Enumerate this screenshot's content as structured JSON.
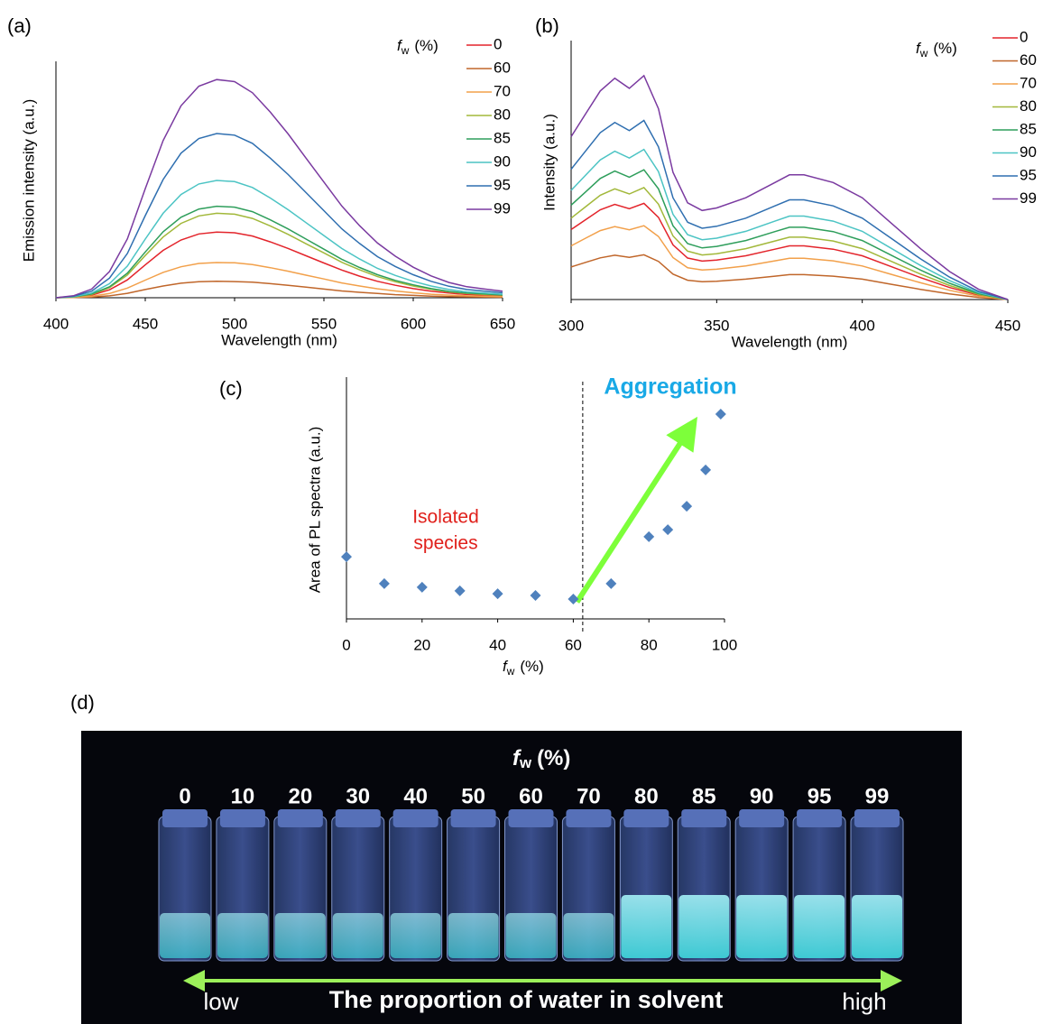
{
  "chart_data": [
    {
      "type": "line",
      "label": "(a)",
      "xlabel": "Wavelength (nm)",
      "ylabel": "Emission intensity  (a.u.)",
      "legend_title": [
        "f",
        "w",
        "(%)"
      ],
      "x": [
        400,
        410,
        420,
        430,
        440,
        450,
        460,
        470,
        480,
        490,
        500,
        510,
        520,
        530,
        540,
        550,
        560,
        570,
        580,
        590,
        600,
        610,
        620,
        630,
        640,
        650
      ],
      "xlim": [
        400,
        650
      ],
      "xticks": [
        400,
        450,
        500,
        550,
        600,
        650
      ],
      "ylim": [
        0,
        100
      ],
      "grid": false,
      "series": [
        {
          "name": "0",
          "color": "#e3242b",
          "values": [
            0,
            0.3,
            1.1,
            3.4,
            7.6,
            14,
            20.2,
            24.6,
            27.2,
            28,
            27.7,
            26.3,
            23.8,
            21,
            17.9,
            14.8,
            11.8,
            9.2,
            7,
            5.3,
            3.9,
            2.8,
            2,
            1.4,
            1.1,
            0.8
          ]
        },
        {
          "name": "60",
          "color": "#c0662a",
          "values": [
            0,
            0.1,
            0.3,
            0.8,
            1.9,
            3.5,
            5,
            6.2,
            6.8,
            7,
            6.9,
            6.6,
            6,
            5.3,
            4.5,
            3.7,
            2.9,
            2.3,
            1.8,
            1.3,
            1,
            0.7,
            0.5,
            0.4,
            0.3,
            0.2
          ]
        },
        {
          "name": "70",
          "color": "#f2a04a",
          "values": [
            0,
            0.2,
            0.6,
            1.8,
            4.1,
            7.5,
            10.8,
            13.2,
            14.6,
            15,
            14.9,
            14.1,
            12.8,
            11.3,
            9.6,
            8,
            6.3,
            5,
            3.8,
            2.9,
            2.1,
            1.5,
            1.1,
            0.8,
            0.6,
            0.5
          ]
        },
        {
          "name": "80",
          "color": "#a2b83a",
          "values": [
            0,
            0.4,
            1.4,
            4.3,
            9.7,
            18,
            25.9,
            31.7,
            34.9,
            36,
            35.6,
            33.8,
            30.6,
            27,
            23,
            19.1,
            15.1,
            11.9,
            9,
            6.8,
            5,
            3.6,
            2.5,
            1.8,
            1.4,
            1.1
          ]
        },
        {
          "name": "85",
          "color": "#2e9e5b",
          "values": [
            0,
            0.4,
            1.6,
            4.7,
            10.5,
            19.5,
            28.1,
            34.3,
            37.8,
            39,
            38.6,
            36.7,
            33.2,
            29.3,
            25,
            20.7,
            16.4,
            12.9,
            9.8,
            7.4,
            5.5,
            3.9,
            2.7,
            2,
            1.6,
            1.2
          ]
        },
        {
          "name": "90",
          "color": "#4cc4c4",
          "values": [
            0,
            0.5,
            2,
            6,
            13.5,
            25,
            36,
            44,
            48.5,
            50,
            49.5,
            47,
            42.5,
            37.5,
            32,
            26.5,
            21,
            16.5,
            12.5,
            9.5,
            7,
            5,
            3.5,
            2.5,
            2,
            1.5
          ]
        },
        {
          "name": "95",
          "color": "#2f6fb0",
          "values": [
            0,
            0.7,
            2.8,
            8.4,
            18.9,
            35,
            50.4,
            61.6,
            67.9,
            70,
            69.3,
            65.8,
            59.5,
            52.5,
            44.8,
            37.1,
            29.4,
            23.1,
            17.5,
            13.3,
            9.8,
            7,
            4.9,
            3.5,
            2.8,
            2.1
          ]
        },
        {
          "name": "99",
          "color": "#7a3aa0",
          "values": [
            0,
            0.9,
            3.7,
            11.2,
            25.1,
            46.5,
            67,
            81.8,
            90.2,
            93,
            92.1,
            87.4,
            79.1,
            69.8,
            59.5,
            49.3,
            39.1,
            30.7,
            23.3,
            17.7,
            13,
            9.3,
            6.5,
            4.7,
            3.7,
            2.8
          ]
        }
      ]
    },
    {
      "type": "line",
      "label": "(b)",
      "xlabel": "Wavelength (nm)",
      "ylabel": "Intensity (a.u.)",
      "legend_title": [
        "f",
        "w",
        "(%)"
      ],
      "x": [
        300,
        305,
        310,
        315,
        320,
        325,
        330,
        335,
        340,
        345,
        350,
        360,
        370,
        375,
        380,
        390,
        400,
        410,
        420,
        430,
        440,
        450
      ],
      "xlim": [
        300,
        450
      ],
      "xticks": [
        300,
        350,
        400,
        450
      ],
      "ylim": [
        0,
        100
      ],
      "grid": false,
      "series": [
        {
          "name": "0",
          "color": "#e3242b",
          "values": [
            27.5,
            31.4,
            35.3,
            37.4,
            35.7,
            37.8,
            32.3,
            21.5,
            16.3,
            15.1,
            15.5,
            17.2,
            19.8,
            21.1,
            21.1,
            19.8,
            17.2,
            12.9,
            8.6,
            4.7,
            1.7,
            0
          ]
        },
        {
          "name": "60",
          "color": "#c0662a",
          "values": [
            12.8,
            14.6,
            16.4,
            17.4,
            16.6,
            17.6,
            15,
            10,
            7.6,
            7,
            7.2,
            8,
            9.2,
            9.8,
            9.8,
            9.2,
            8,
            6,
            4,
            2.2,
            0.8,
            0
          ]
        },
        {
          "name": "70",
          "color": "#f2a04a",
          "values": [
            21.1,
            24.1,
            27.1,
            28.7,
            27.4,
            29,
            24.8,
            16.5,
            12.5,
            11.6,
            11.9,
            13.2,
            15.2,
            16.2,
            16.2,
            15.2,
            13.2,
            9.9,
            6.6,
            3.6,
            1.3,
            0
          ]
        },
        {
          "name": "80",
          "color": "#a2b83a",
          "values": [
            32,
            36.5,
            41,
            43.5,
            41.5,
            44,
            37.5,
            25,
            19,
            17.5,
            18,
            20,
            23,
            24.5,
            24.5,
            23,
            20,
            15,
            10,
            5.5,
            2,
            0
          ]
        },
        {
          "name": "85",
          "color": "#2e9e5b",
          "values": [
            37.1,
            42.3,
            47.6,
            50.5,
            48.1,
            51,
            43.5,
            29,
            22,
            20.3,
            20.9,
            23.2,
            26.7,
            28.4,
            28.4,
            26.7,
            23.2,
            17.4,
            11.6,
            6.4,
            2.3,
            0
          ]
        },
        {
          "name": "90",
          "color": "#4cc4c4",
          "values": [
            42.9,
            48.9,
            54.9,
            58.3,
            55.6,
            59,
            50.3,
            33.5,
            25.5,
            23.5,
            24.1,
            26.8,
            30.8,
            32.8,
            32.8,
            30.8,
            26.8,
            20.1,
            13.4,
            7.4,
            2.7,
            0
          ]
        },
        {
          "name": "95",
          "color": "#2f6fb0",
          "values": [
            51.2,
            58.4,
            65.6,
            69.6,
            66.4,
            70.4,
            60,
            40,
            30.4,
            28,
            28.8,
            32,
            36.8,
            39.2,
            39.2,
            36.8,
            32,
            24,
            16,
            8.8,
            3.2,
            0
          ]
        },
        {
          "name": "99",
          "color": "#7a3aa0",
          "values": [
            64,
            73,
            82,
            87,
            83,
            88,
            75,
            50,
            38,
            35,
            36,
            40,
            46,
            49,
            49,
            46,
            40,
            30,
            20,
            11,
            4,
            0
          ]
        }
      ]
    },
    {
      "type": "scatter",
      "label": "(c)",
      "xlabel": [
        "f",
        "w",
        "(%)"
      ],
      "ylabel": "Area of PL spectra (a.u.)",
      "x": [
        0,
        10,
        20,
        30,
        40,
        50,
        60,
        70,
        80,
        85,
        90,
        95,
        99
      ],
      "values": [
        25.7,
        14.6,
        13.1,
        11.6,
        10.4,
        9.7,
        8.2,
        14.6,
        34,
        36.9,
        46.6,
        61.6,
        84.7
      ],
      "color": "#4f81bd",
      "xlim": [
        0,
        100
      ],
      "xticks": [
        0,
        20,
        40,
        60,
        80,
        100
      ],
      "ylim": [
        0,
        100
      ],
      "grid": false,
      "threshold_x": 62.5,
      "annotations": {
        "isolated": [
          "Isolated",
          "species"
        ],
        "aggregation": "Aggregation"
      }
    }
  ],
  "photo": {
    "label": "(d)",
    "header": [
      "f",
      "w",
      "(%)"
    ],
    "vial_labels": [
      "0",
      "10",
      "20",
      "30",
      "40",
      "50",
      "60",
      "70",
      "80",
      "85",
      "90",
      "95",
      "99"
    ],
    "low": "low",
    "caption": "The proportion of water in solvent",
    "high": "high"
  }
}
